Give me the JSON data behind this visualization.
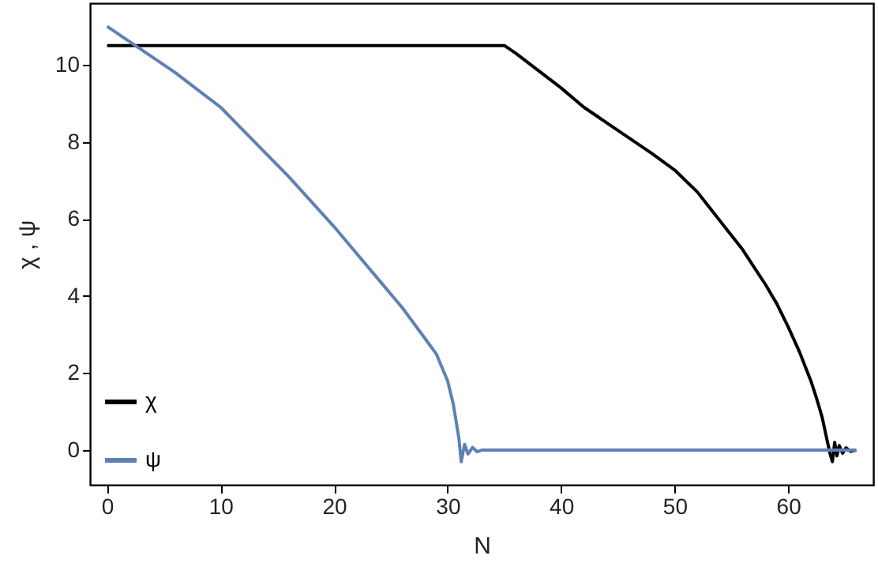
{
  "chart_data": {
    "type": "line",
    "xlabel": "N",
    "ylabel": "χ , ψ",
    "xlim": [
      -1.5,
      67.5
    ],
    "ylim": [
      -0.9,
      11.6
    ],
    "xticks": [
      0,
      10,
      20,
      30,
      40,
      50,
      60
    ],
    "yticks": [
      0,
      2,
      4,
      6,
      8,
      10
    ],
    "legend": "bottom left",
    "grid": false,
    "series": [
      {
        "name": "χ",
        "color": "#000000",
        "x": [
          0,
          10,
          20,
          30,
          35,
          36,
          38,
          40,
          42,
          44,
          46,
          48,
          50,
          52,
          54,
          56,
          57,
          58,
          59,
          60,
          61,
          62,
          62.5,
          63,
          63.4,
          63.7,
          63.9,
          64.1,
          64.3,
          64.5,
          64.8,
          65.1,
          65.5,
          66
        ],
        "values": [
          10.5,
          10.5,
          10.5,
          10.5,
          10.5,
          10.3,
          9.85,
          9.4,
          8.9,
          8.5,
          8.1,
          7.7,
          7.27,
          6.7,
          5.95,
          5.2,
          4.75,
          4.3,
          3.8,
          3.2,
          2.55,
          1.8,
          1.35,
          0.85,
          0.3,
          -0.1,
          -0.3,
          0.2,
          -0.15,
          0.12,
          -0.08,
          0.06,
          -0.03,
          0
        ]
      },
      {
        "name": "ψ",
        "color": "#5e81b5",
        "x": [
          0,
          2,
          4,
          6,
          8,
          10,
          12,
          14,
          16,
          18,
          20,
          22,
          24,
          26,
          27,
          28,
          29,
          30,
          30.5,
          31,
          31.2,
          31.5,
          31.8,
          32.2,
          32.6,
          33,
          40,
          50,
          60,
          66
        ],
        "values": [
          11.0,
          10.6,
          10.2,
          9.8,
          9.35,
          8.9,
          8.3,
          7.7,
          7.1,
          6.45,
          5.8,
          5.1,
          4.4,
          3.7,
          3.3,
          2.9,
          2.5,
          1.8,
          1.2,
          0.3,
          -0.3,
          0.15,
          -0.1,
          0.07,
          -0.04,
          0,
          0,
          0,
          0,
          0
        ]
      }
    ]
  }
}
